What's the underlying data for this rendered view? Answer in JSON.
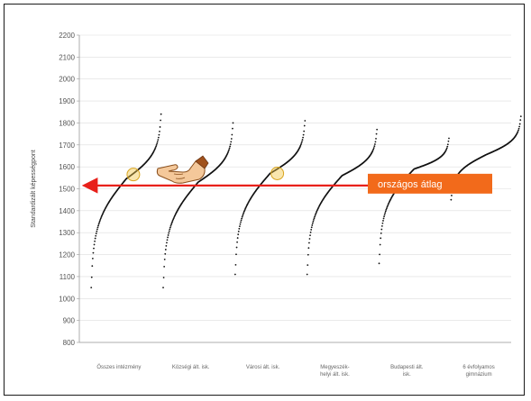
{
  "chart_data": {
    "type": "scatter",
    "ylabel": "Standardizált képességpont",
    "ylim": [
      800,
      2200
    ],
    "yticks": [
      800,
      900,
      1000,
      1100,
      1200,
      1300,
      1400,
      1500,
      1600,
      1700,
      1800,
      1900,
      2000,
      2100,
      2200
    ],
    "grid": true,
    "categories": [
      [
        "Összes intézmény"
      ],
      [
        "Községi ált. isk."
      ],
      [
        "Városi ált. isk."
      ],
      [
        "Megyeszék-",
        "helyi ált. isk."
      ],
      [
        "Budapesti ált.",
        "isk."
      ],
      [
        "6 évfolyamos",
        "gimnázium"
      ]
    ],
    "series": [
      {
        "min": 1050,
        "max": 1840,
        "median": 1545
      },
      {
        "min": 1050,
        "max": 1800,
        "median": 1530
      },
      {
        "min": 1110,
        "max": 1810,
        "median": 1570
      },
      {
        "min": 1110,
        "max": 1770,
        "median": 1560
      },
      {
        "min": 1160,
        "max": 1730,
        "median": 1590
      },
      {
        "min": 1450,
        "max": 1830,
        "median": 1655
      }
    ],
    "highlighted_points": [
      {
        "category_index": 0,
        "y": 1565
      },
      {
        "category_index": 2,
        "y": 1570
      }
    ],
    "reference_line": {
      "y": 1515,
      "label": "országos átlag"
    },
    "colors": {
      "points": "#111111",
      "grid": "#dddddd",
      "axis": "#999999",
      "reference_line": "#e8201a",
      "callout": "#f26a1b",
      "highlight": "#f2c84b"
    }
  },
  "annotation": {
    "icon": "pointing-hand-icon"
  }
}
